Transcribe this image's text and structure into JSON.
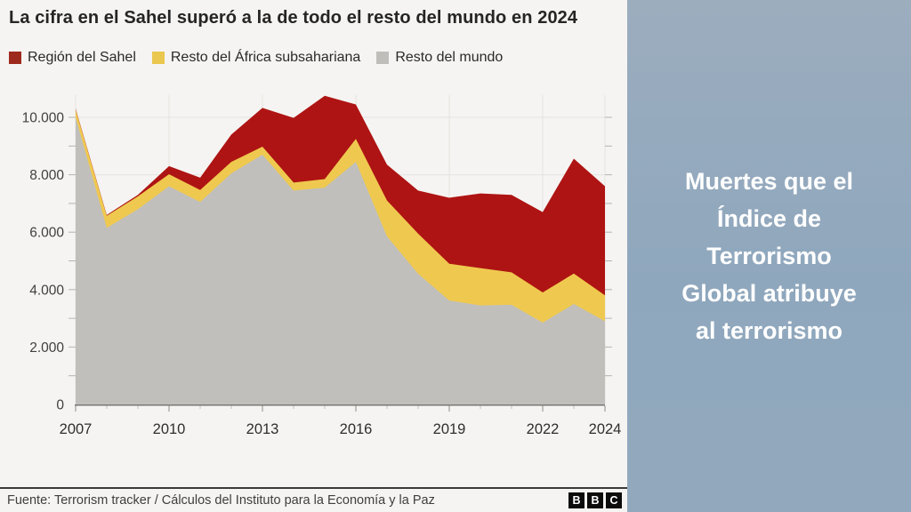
{
  "page": {
    "left_bg": "#f5f4f2",
    "right_bg": "#91a8bd"
  },
  "header": {
    "title": "La cifra en el Sahel superó a la de todo el resto del mundo en 2024"
  },
  "legend": [
    {
      "label": "Región del Sahel",
      "color": "#9e2a1d"
    },
    {
      "label": "Resto del África subsahariana",
      "color": "#eac74e"
    },
    {
      "label": "Resto del mundo",
      "color": "#bfbebb"
    }
  ],
  "chart_data": {
    "type": "area",
    "stacked": true,
    "title": "La cifra en el Sahel superó a la de todo el resto del mundo en 2024",
    "xlabel": "",
    "ylabel": "",
    "x": [
      2007,
      2008,
      2009,
      2010,
      2011,
      2012,
      2013,
      2014,
      2015,
      2016,
      2017,
      2018,
      2019,
      2020,
      2021,
      2022,
      2023,
      2024
    ],
    "series": [
      {
        "name": "Región del Sahel",
        "color": "#ae1413",
        "values": [
          30,
          30,
          50,
          280,
          430,
          950,
          1350,
          2250,
          2900,
          1200,
          1250,
          1500,
          2300,
          2600,
          2700,
          2800,
          4000,
          3800
        ]
      },
      {
        "name": "Resto del África subsahariana",
        "color": "#efc94f",
        "values": [
          270,
          420,
          450,
          420,
          420,
          400,
          280,
          280,
          300,
          800,
          1250,
          1400,
          1280,
          1300,
          1130,
          1050,
          1060,
          900
        ]
      },
      {
        "name": "Resto del mundo",
        "color": "#c0bfbc",
        "values": [
          10000,
          6150,
          6800,
          7600,
          7050,
          8050,
          8700,
          7450,
          7550,
          8450,
          5850,
          4550,
          3620,
          3450,
          3470,
          2850,
          3500,
          2900
        ]
      }
    ],
    "stack_bottom_to_top": [
      2,
      1,
      0
    ],
    "ylim": [
      0,
      11000
    ],
    "yticks": [
      0,
      2000,
      4000,
      6000,
      8000,
      10000
    ],
    "ytick_labels": [
      "0",
      "2.000",
      "4.000",
      "6.000",
      "8.000",
      "10.000"
    ],
    "minor_ytick_step": 1000,
    "xticks": [
      2007,
      2010,
      2013,
      2016,
      2019,
      2022,
      2024
    ],
    "grid": true,
    "legend_position": "top"
  },
  "sidebar": {
    "title_lines": [
      "Muertes que el",
      "Índice de",
      "Terrorismo",
      "Global atribuye",
      "al terrorismo"
    ]
  },
  "footer": {
    "source": "Fuente: Terrorism tracker / Cálculos del Instituto para la Economía y la Paz",
    "logo_letters": [
      "B",
      "B",
      "C"
    ]
  }
}
